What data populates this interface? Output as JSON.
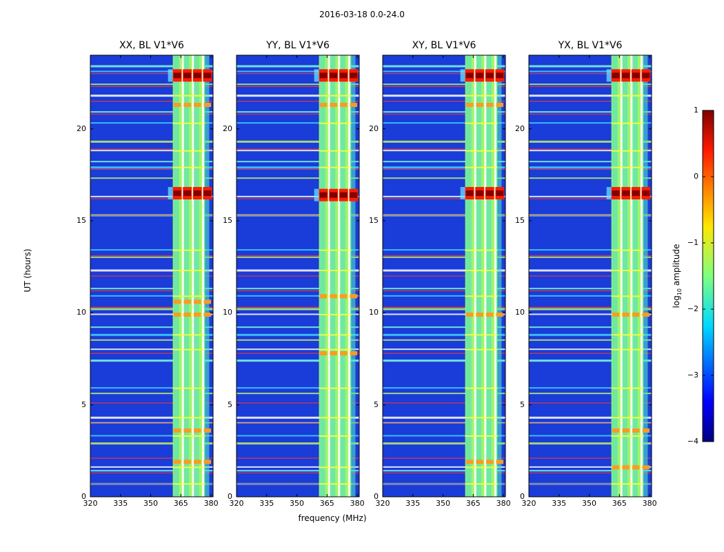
{
  "figure": {
    "suptitle": "2016-03-18 0.0-24.0",
    "xlabel": "frequency (MHz)",
    "ylabel": "UT (hours)",
    "colorbar_label_main": "log",
    "colorbar_label_sub": "10",
    "colorbar_label_tail": " amplitude"
  },
  "chart_data": {
    "type": "heatmap",
    "colormap": "jet",
    "panels": [
      {
        "title": "XX, BL V1*V6",
        "burst_hours": [
          16.5,
          22.9
        ],
        "orange_hours": [
          3.6,
          1.9,
          9.9,
          10.6,
          21.3
        ]
      },
      {
        "title": "YY, BL V1*V6",
        "burst_hours": [
          16.4,
          22.9
        ],
        "orange_hours": [
          7.8,
          10.9,
          21.3
        ]
      },
      {
        "title": "XY, BL V1*V6",
        "burst_hours": [
          16.5,
          22.9
        ],
        "orange_hours": [
          1.9,
          9.9,
          21.3
        ]
      },
      {
        "title": "YX, BL V1*V6",
        "burst_hours": [
          16.5,
          22.9
        ],
        "orange_hours": [
          1.6,
          3.6,
          9.9
        ]
      }
    ],
    "xlim": [
      320,
      381
    ],
    "ylim": [
      0,
      24
    ],
    "xticks": [
      320,
      335,
      350,
      365,
      380
    ],
    "yticks": [
      0,
      5,
      10,
      15,
      20
    ],
    "signal_band_mhz": [
      361,
      377
    ],
    "channel_gaps_mhz": [
      366,
      371,
      376
    ],
    "colorbar": {
      "min": -4,
      "max": 1,
      "ticks": [
        -4,
        -3,
        -2,
        -1,
        0,
        1
      ]
    },
    "bright_hours": [
      0.7,
      1.4,
      1.6,
      2.9,
      3.3,
      4.0,
      4.3,
      5.6,
      5.9,
      7.4,
      8.0,
      8.5,
      8.8,
      9.2,
      9.9,
      10.2,
      10.9,
      11.3,
      12.3,
      13.0,
      13.4,
      15.3,
      16.3,
      17.3,
      17.9,
      18.2,
      18.8,
      19.3,
      20.3,
      20.9,
      21.8,
      22.4,
      23.1,
      23.4
    ],
    "red_line_hours": [
      0.7,
      1.3,
      2.1,
      4.0,
      5.1,
      7.8,
      10.3,
      11.2,
      12.0,
      13.1,
      15.3,
      16.2,
      17.8,
      18.9,
      20.8,
      21.5,
      22.3,
      23.0
    ]
  }
}
